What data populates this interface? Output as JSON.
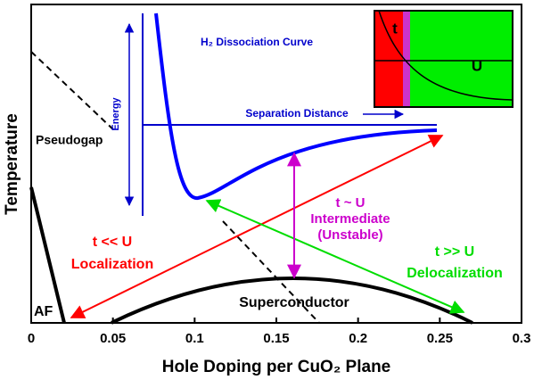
{
  "chart_data": {
    "type": "phase-diagram",
    "xlabel": "Hole Doping per CuO₂ Plane",
    "ylabel": "Temperature",
    "xlim": [
      0,
      0.3
    ],
    "xticks": [
      0,
      0.05,
      0.1,
      0.15,
      0.2,
      0.25,
      0.3
    ],
    "regions": {
      "pseudogap": "Pseudogap",
      "af": "AF",
      "superconductor": "Superconductor"
    },
    "inset_h2": {
      "title": "H₂ Dissociation Curve",
      "yaxis": "Energy",
      "xaxis": "Separation Distance"
    },
    "inset_tu": {
      "t": "t",
      "u": "U"
    },
    "localization": {
      "relation": "t << U",
      "label": "Localization",
      "color": "#ff0000"
    },
    "intermediate": {
      "relation": "t ~ U",
      "label": "Intermediate",
      "note": "(Unstable)",
      "color": "#cc00cc"
    },
    "delocalization": {
      "relation": "t >> U",
      "label": "Delocalization",
      "color": "#00dd00"
    }
  }
}
